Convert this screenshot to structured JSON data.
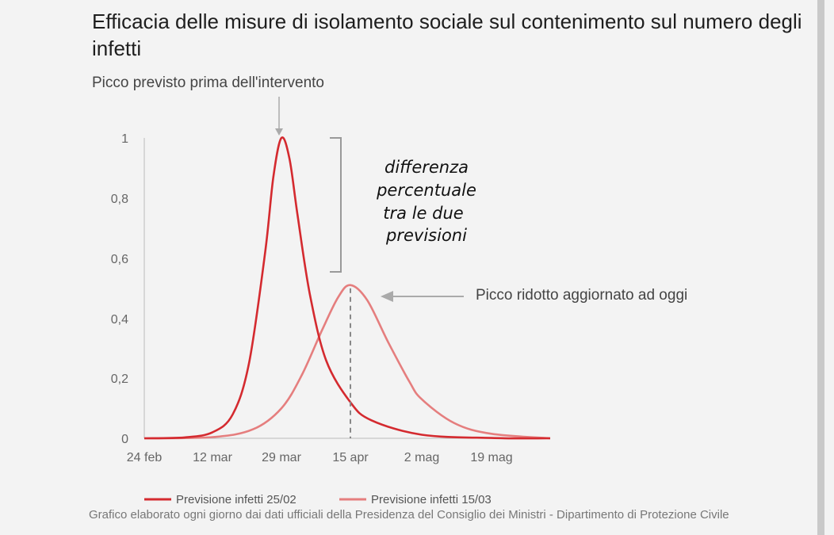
{
  "chart_data": {
    "type": "line",
    "title": "Efficacia delle misure di isolamento sociale sul contenimento sul numero degli infetti",
    "x_tick_labels": [
      "24 feb",
      "12 mar",
      "29 mar",
      "15 apr",
      "2 mag",
      "19 mag"
    ],
    "y_tick_labels": [
      "0",
      "0,2",
      "0,4",
      "0,6",
      "0,8",
      "1"
    ],
    "ylim": [
      0,
      1
    ],
    "grid": false,
    "legend_position": "bottom",
    "series": [
      {
        "name": "Previsione infetti 25/02",
        "color": "#d42a2f",
        "x": [
          "24 feb",
          "5 mar",
          "12 mar",
          "17 mar",
          "21 mar",
          "25 mar",
          "27 mar",
          "29 mar",
          "31 mar",
          "2 apr",
          "5 apr",
          "9 apr",
          "15 apr",
          "20 apr",
          "2 mag",
          "19 mag",
          "5 giu"
        ],
        "values": [
          0.0,
          0.003,
          0.02,
          0.08,
          0.25,
          0.62,
          0.87,
          1.0,
          0.93,
          0.74,
          0.48,
          0.26,
          0.12,
          0.06,
          0.012,
          0.001,
          0.0
        ]
      },
      {
        "name": "Previsione infetti 15/03",
        "color": "#e57e7e",
        "x": [
          "24 feb",
          "12 mar",
          "22 mar",
          "29 mar",
          "3 apr",
          "8 apr",
          "12 apr",
          "15 apr",
          "19 apr",
          "24 apr",
          "29 apr",
          "2 mag",
          "10 mag",
          "19 mag",
          "5 giu"
        ],
        "values": [
          0.0,
          0.004,
          0.03,
          0.1,
          0.21,
          0.36,
          0.47,
          0.51,
          0.46,
          0.32,
          0.19,
          0.13,
          0.05,
          0.015,
          0.0
        ]
      }
    ],
    "annotations": {
      "peak_before": "Picco previsto prima dell'intervento",
      "peak_reduced": "Picco ridotto aggiornato ad oggi",
      "difference_lines": [
        "differenza",
        "percentuale",
        "tra le due",
        "previsioni"
      ]
    }
  },
  "footer": "Grafico elaborato ogni giorno dai dati ufficiali della Presidenza del Consiglio dei Ministri - Dipartimento di Protezione Civile"
}
